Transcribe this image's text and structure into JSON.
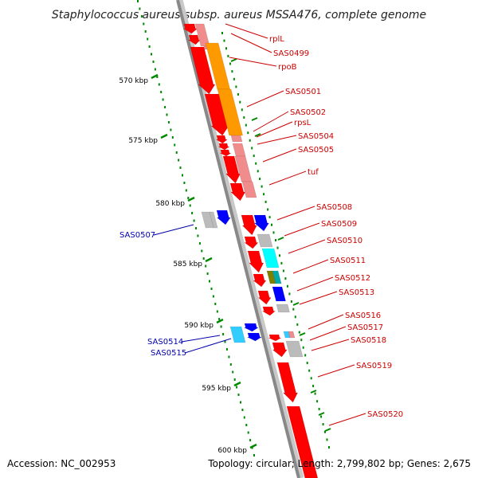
{
  "title": "Staphylococcus aureus subsp. aureus MSSA476, complete genome",
  "footer": {
    "accession": "Accession: NC_002953",
    "summary": "Topology: circular; Length: 2,799,802 bp; Genes: 2,675"
  },
  "scale_labels": [
    "570 kbp",
    "575 kbp",
    "580 kbp",
    "585 kbp",
    "590 kbp",
    "595 kbp",
    "600 kbp"
  ],
  "colors": {
    "gene_red": "#ff0000",
    "gene_pink": "#f08c8c",
    "gene_orange": "#ff9900",
    "gene_grey": "#bbbbbb",
    "gene_blue": "#0000ff",
    "gene_cyan": "#00ffff",
    "gene_lightblue": "#33ccff",
    "gene_olive": "#808000",
    "gene_teal": "#00aaaa",
    "backbone": "#888888",
    "ruler": "#008800",
    "label_red": "#cc0000",
    "label_blue": "#0000aa"
  },
  "labels_right": [
    "rplL",
    "SAS0499",
    "rpoB",
    "SAS0501",
    "SAS0502",
    "rpsL",
    "SAS0504",
    "SAS0505",
    "tuf",
    "SAS0508",
    "SAS0509",
    "SAS0510",
    "SAS0511",
    "SAS0512",
    "SAS0513",
    "SAS0516",
    "SAS0517",
    "SAS0518",
    "SAS0519",
    "SAS0520"
  ],
  "labels_left": [
    "SAS0507",
    "SAS0514",
    "SAS0515"
  ]
}
